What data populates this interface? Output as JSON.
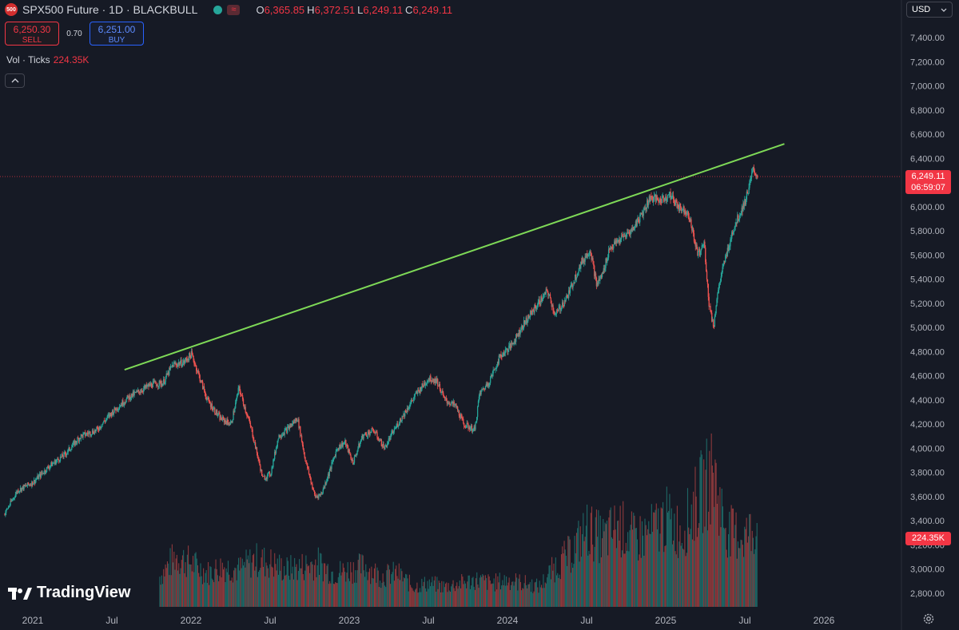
{
  "header": {
    "symbol_badge": "500",
    "symbol": "SPX500 Future · 1D · BLACKBULL",
    "ohlc": {
      "o_label": "O",
      "o": "6,365.85",
      "h_label": "H",
      "h": "6,372.51",
      "l_label": "L",
      "l": "6,249.11",
      "c_label": "C",
      "c": "6,249.11"
    }
  },
  "trade": {
    "sell_price": "6,250.30",
    "sell_label": "SELL",
    "spread": "0.70",
    "buy_price": "6,251.00",
    "buy_label": "BUY"
  },
  "volume_legend": {
    "label": "Vol · Ticks",
    "value": "224.35K"
  },
  "currency": "USD",
  "last_price": {
    "price": "6,249.11",
    "countdown": "06:59:07"
  },
  "last_volume": "224.35K",
  "brand": "TradingView",
  "colors": {
    "background": "#161a25",
    "up": "#26a69a",
    "down": "#ef5350",
    "trendline": "#7ed957",
    "label": "#f23645"
  },
  "chart_data": {
    "type": "line",
    "style": "candlestick with volume",
    "yaxis": {
      "min": 2700,
      "max": 7500,
      "ticks": [
        2800,
        3000,
        3200,
        3400,
        3600,
        3800,
        4000,
        4200,
        4400,
        4600,
        4800,
        5000,
        5200,
        5400,
        5600,
        5800,
        6000,
        6200,
        6400,
        6600,
        6800,
        7000,
        7200,
        7400
      ],
      "tick_labels": [
        "2,800.00",
        "3,000.00",
        "3,200.00",
        "3,400.00",
        "3,600.00",
        "3,800.00",
        "4,000.00",
        "4,200.00",
        "4,400.00",
        "4,600.00",
        "4,800.00",
        "5,000.00",
        "5,200.00",
        "5,400.00",
        "5,600.00",
        "5,800.00",
        "6,000.00",
        "6,200.00",
        "6,400.00",
        "6,600.00",
        "6,800.00",
        "7,000.00",
        "7,200.00",
        "7,400.00"
      ]
    },
    "xaxis": {
      "ticks": [
        2021.0,
        2021.5,
        2022.0,
        2022.5,
        2023.0,
        2023.5,
        2024.0,
        2024.5,
        2025.0,
        2025.5,
        2026.0
      ],
      "tick_labels": [
        "2021",
        "Jul",
        "2022",
        "Jul",
        "2023",
        "Jul",
        "2024",
        "Jul",
        "2025",
        "Jul",
        "2026"
      ]
    },
    "price_series": {
      "x": [
        2020.82,
        2020.9,
        2021.0,
        2021.1,
        2021.2,
        2021.3,
        2021.4,
        2021.5,
        2021.6,
        2021.68,
        2021.75,
        2021.82,
        2021.88,
        2021.95,
        2022.0,
        2022.04,
        2022.1,
        2022.18,
        2022.25,
        2022.3,
        2022.38,
        2022.45,
        2022.5,
        2022.55,
        2022.6,
        2022.67,
        2022.72,
        2022.78,
        2022.82,
        2022.87,
        2022.92,
        2022.97,
        2023.02,
        2023.08,
        2023.15,
        2023.22,
        2023.28,
        2023.35,
        2023.42,
        2023.5,
        2023.55,
        2023.6,
        2023.67,
        2023.72,
        2023.79,
        2023.82,
        2023.88,
        2023.95,
        2024.02,
        2024.1,
        2024.18,
        2024.25,
        2024.3,
        2024.38,
        2024.45,
        2024.52,
        2024.56,
        2024.6,
        2024.64,
        2024.72,
        2024.78,
        2024.85,
        2024.9,
        2024.96,
        2025.02,
        2025.08,
        2025.14,
        2025.2,
        2025.24,
        2025.27,
        2025.3,
        2025.32,
        2025.36,
        2025.42,
        2025.5,
        2025.55,
        2025.58
      ],
      "close": [
        3460,
        3650,
        3720,
        3850,
        3950,
        4100,
        4150,
        4300,
        4420,
        4480,
        4530,
        4540,
        4690,
        4710,
        4780,
        4630,
        4400,
        4250,
        4200,
        4500,
        4150,
        3750,
        3790,
        4100,
        4150,
        4250,
        3900,
        3600,
        3620,
        3800,
        4000,
        4050,
        3880,
        4100,
        4150,
        4000,
        4150,
        4300,
        4450,
        4580,
        4560,
        4400,
        4350,
        4200,
        4150,
        4450,
        4550,
        4760,
        4850,
        5030,
        5180,
        5300,
        5100,
        5270,
        5500,
        5650,
        5350,
        5450,
        5650,
        5740,
        5800,
        5950,
        6080,
        6050,
        6100,
        6000,
        5950,
        5600,
        5700,
        5200,
        5000,
        5250,
        5500,
        5800,
        6050,
        6300,
        6249.11
      ]
    },
    "trendline": {
      "x": [
        2021.58,
        2025.75
      ],
      "y": [
        4650,
        6520
      ]
    },
    "last_value": 6249.11,
    "volume_series": {
      "x": [
        2021.8,
        2021.9,
        2022.0,
        2022.1,
        2022.2,
        2022.3,
        2022.4,
        2022.5,
        2022.6,
        2022.7,
        2022.8,
        2022.9,
        2023.0,
        2023.1,
        2023.2,
        2023.3,
        2023.4,
        2023.5,
        2023.6,
        2023.7,
        2023.8,
        2023.9,
        2024.0,
        2024.1,
        2024.2,
        2024.3,
        2024.4,
        2024.5,
        2024.6,
        2024.7,
        2024.8,
        2024.9,
        2025.0,
        2025.1,
        2025.2,
        2025.3,
        2025.35,
        2025.4,
        2025.5,
        2025.58
      ],
      "values": [
        0.9,
        1.5,
        1.3,
        1.0,
        1.2,
        1.1,
        1.4,
        1.3,
        1.1,
        1.2,
        1.3,
        1.0,
        1.1,
        1.2,
        0.9,
        1.0,
        0.6,
        0.7,
        0.6,
        0.7,
        0.8,
        0.7,
        0.8,
        0.7,
        0.6,
        1.2,
        1.6,
        2.3,
        2.0,
        2.4,
        2.0,
        2.2,
        2.6,
        2.2,
        3.2,
        4.0,
        2.8,
        2.2,
        2.1,
        2.4
      ]
    },
    "grid": false,
    "legend": "top-left"
  }
}
